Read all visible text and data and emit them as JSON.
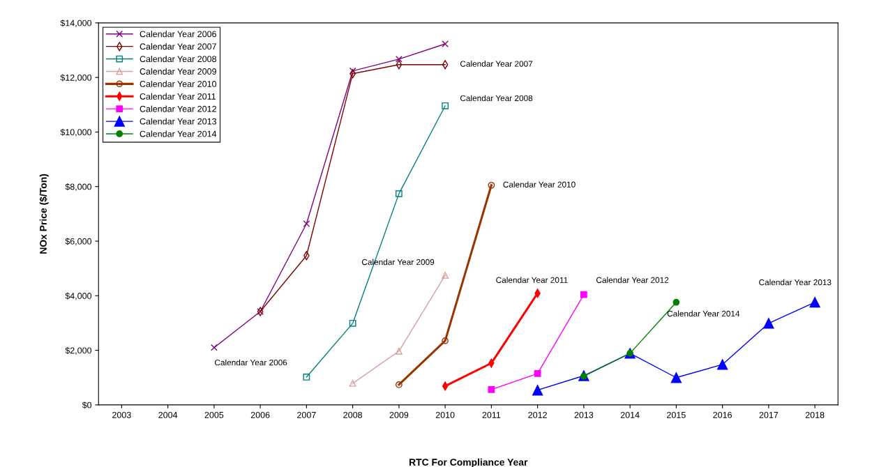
{
  "chart_data": {
    "type": "line",
    "xlabel": "RTC For Compliance Year",
    "ylabel": "NOx Price ($/Ton)",
    "categories": [
      "2003",
      "2004",
      "2005",
      "2006",
      "2007",
      "2008",
      "2009",
      "2010",
      "2011",
      "2012",
      "2013",
      "2014",
      "2015",
      "2016",
      "2017",
      "2018"
    ],
    "series": [
      {
        "name": "Calendar Year 2006",
        "color": "#800080",
        "marker": "cross",
        "values": [
          null,
          null,
          2100,
          3420,
          6640,
          12240,
          12670,
          13230,
          null,
          null,
          null,
          null,
          null,
          null,
          null,
          null
        ]
      },
      {
        "name": "Calendar Year 2007",
        "color": "#800000",
        "marker": "diamond",
        "values": [
          null,
          null,
          null,
          3420,
          5470,
          12140,
          12470,
          12470,
          null,
          null,
          null,
          null,
          null,
          null,
          null,
          null
        ]
      },
      {
        "name": "Calendar Year 2008",
        "color": "#008080",
        "marker": "square",
        "values": [
          null,
          null,
          null,
          null,
          1020,
          2990,
          7740,
          10960,
          null,
          null,
          null,
          null,
          null,
          null,
          null,
          null
        ]
      },
      {
        "name": "Calendar Year 2009",
        "color": "#d4a0a0",
        "marker": "triangle",
        "values": [
          null,
          null,
          null,
          null,
          null,
          790,
          1970,
          4750,
          null,
          null,
          null,
          null,
          null,
          null,
          null,
          null
        ]
      },
      {
        "name": "Calendar Year 2010",
        "color": "#993300",
        "marker": "circle",
        "values": [
          null,
          null,
          null,
          null,
          null,
          null,
          740,
          2350,
          8050,
          null,
          null,
          null,
          null,
          null,
          null,
          null
        ]
      },
      {
        "name": "Calendar Year 2011",
        "color": "#ff0000",
        "marker": "diamond",
        "values": [
          null,
          null,
          null,
          null,
          null,
          null,
          null,
          690,
          1530,
          4090,
          null,
          null,
          null,
          null,
          null,
          null
        ]
      },
      {
        "name": "Calendar Year 2012",
        "color": "#ff00ff",
        "marker": "square",
        "values": [
          null,
          null,
          null,
          null,
          null,
          null,
          null,
          null,
          560,
          1150,
          4040,
          null,
          null,
          null,
          null,
          null
        ]
      },
      {
        "name": "Calendar Year 2013",
        "color": "#0000ff",
        "marker": "triangle",
        "values": [
          null,
          null,
          null,
          null,
          null,
          null,
          null,
          null,
          null,
          540,
          1070,
          1890,
          1000,
          1480,
          2990,
          3760
        ]
      },
      {
        "name": "Calendar Year 2014",
        "color": "#008000",
        "marker": "circle",
        "values": [
          null,
          null,
          null,
          null,
          null,
          null,
          null,
          null,
          null,
          null,
          1050,
          1890,
          3760,
          null,
          null,
          null
        ]
      }
    ],
    "ylim": [
      0,
      14000
    ],
    "yticks": [
      {
        "value": 0,
        "label": "$0"
      },
      {
        "value": 2000,
        "label": "$2,000"
      },
      {
        "value": 4000,
        "label": "$4,000"
      },
      {
        "value": 6000,
        "label": "$6,000"
      },
      {
        "value": 8000,
        "label": "$8,000"
      },
      {
        "value": 10000,
        "label": "$10,000"
      },
      {
        "value": 12000,
        "label": "$12,000"
      },
      {
        "value": 14000,
        "label": "$14,000"
      }
    ],
    "grid": false,
    "legend": "top left",
    "line_style": "solid",
    "annotations": [
      "Calendar Year 2006",
      "Calendar Year 2007",
      "Calendar Year 2008",
      "Calendar Year 2009",
      "Calendar Year 2010",
      "Calendar Year 2011",
      "Calendar Year 2012",
      "Calendar Year 2013",
      "Calendar Year 2014"
    ]
  }
}
